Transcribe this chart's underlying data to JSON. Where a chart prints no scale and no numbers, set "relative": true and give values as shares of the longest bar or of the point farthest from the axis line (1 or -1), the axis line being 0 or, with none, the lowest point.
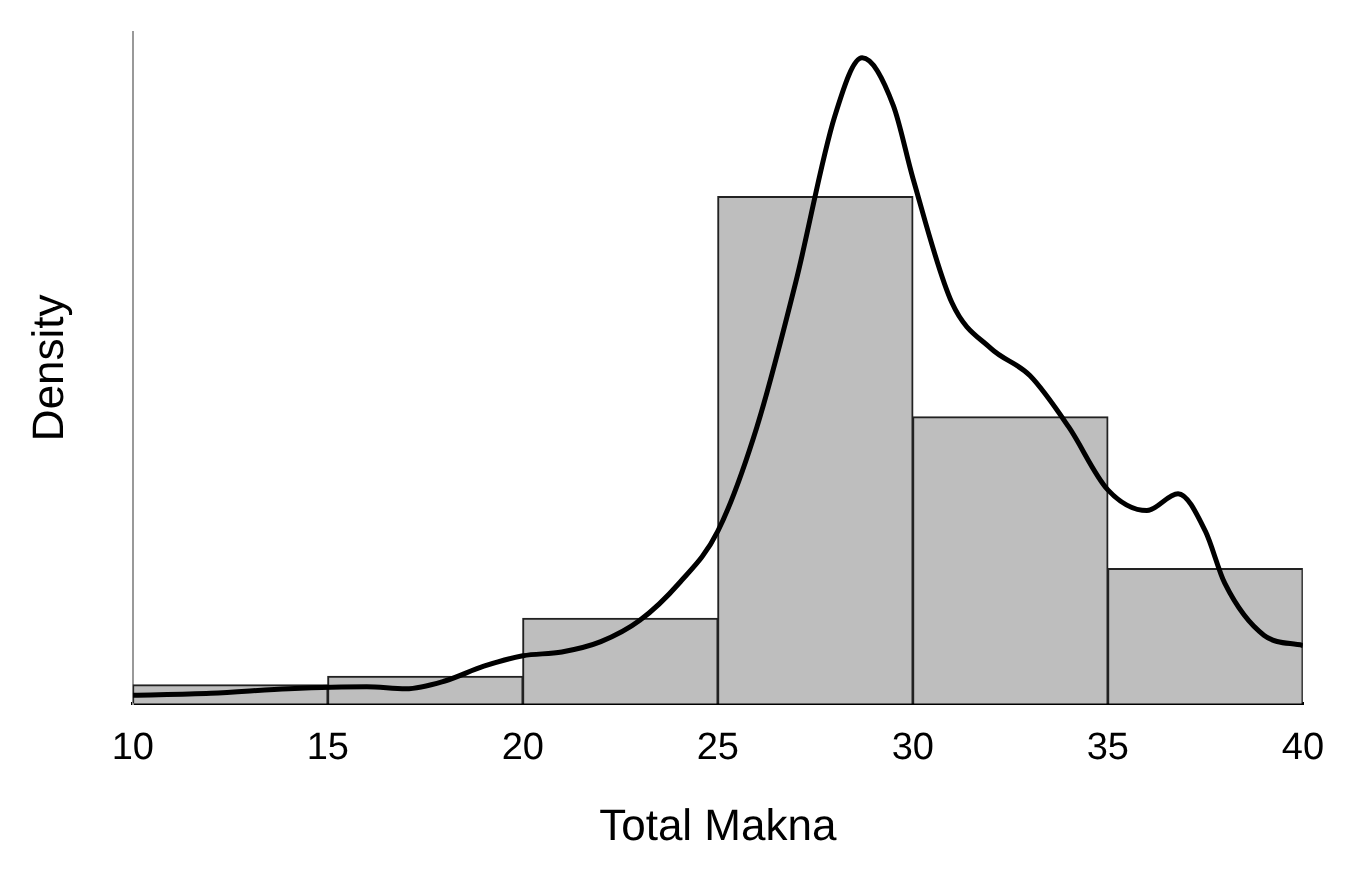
{
  "chart_data": {
    "type": "histogram",
    "relative": true,
    "xlabel": "Total Makna",
    "ylabel": "Density",
    "bins": [
      10,
      15,
      20,
      25,
      30,
      35,
      40
    ],
    "values": [
      0.029,
      0.042,
      0.132,
      0.785,
      0.444,
      0.209
    ],
    "color": "#bebebe",
    "xlim": [
      10,
      40
    ],
    "xticks": [
      10,
      15,
      20,
      25,
      30,
      35,
      40
    ],
    "grid": false,
    "legend": false,
    "series": [
      {
        "type": "line",
        "color": "#000000",
        "x": [
          10,
          12,
          14,
          16,
          17,
          18,
          19,
          20,
          21,
          22,
          23,
          24,
          25,
          26,
          27,
          28,
          28.7,
          29.5,
          30,
          31,
          32,
          33,
          34,
          35,
          36,
          36.8,
          37.5,
          38,
          39,
          40
        ],
        "values": [
          0.013,
          0.016,
          0.023,
          0.026,
          0.023,
          0.035,
          0.058,
          0.074,
          0.08,
          0.096,
          0.129,
          0.186,
          0.267,
          0.428,
          0.653,
          0.91,
          1.0,
          0.926,
          0.814,
          0.621,
          0.55,
          0.508,
          0.428,
          0.331,
          0.299,
          0.325,
          0.267,
          0.186,
          0.106,
          0.09
        ]
      }
    ]
  }
}
